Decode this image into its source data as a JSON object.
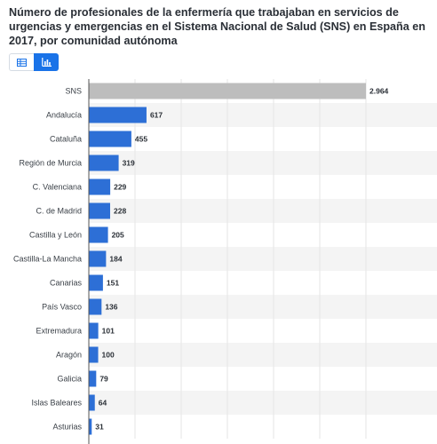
{
  "title": "Número de profesionales de la enfermería que trabajaban en servicios de urgencias y emergencias en el Sistema Nacional de Salud (SNS) en España en 2017, por comunidad autónoma",
  "toggle": {
    "options": [
      "table-icon",
      "bar-chart-icon"
    ],
    "active": "bar-chart-icon",
    "accent": "#1a73e8"
  },
  "chart_data": {
    "type": "bar",
    "orientation": "horizontal",
    "categories": [
      "SNS",
      "Andalucía",
      "Cataluña",
      "Región de Murcia",
      "C. Valenciana",
      "C. de Madrid",
      "Castilla y León",
      "Castilla-La Mancha",
      "Canarias",
      "País Vasco",
      "Extremadura",
      "Aragón",
      "Galicia",
      "Islas Baleares",
      "Asturias"
    ],
    "values": [
      2964,
      617,
      455,
      319,
      229,
      228,
      205,
      184,
      151,
      136,
      101,
      100,
      79,
      64,
      31
    ],
    "value_labels": [
      "2.964",
      "617",
      "455",
      "319",
      "229",
      "228",
      "205",
      "184",
      "151",
      "136",
      "101",
      "100",
      "79",
      "64",
      "31"
    ],
    "highlight_category": "SNS",
    "colors": {
      "bar": "#2d6fd6",
      "highlight": "#bdbdbd",
      "stripe": "#f4f4f4"
    },
    "xlim": [
      0,
      2964
    ],
    "grid": true,
    "legend": "none"
  }
}
